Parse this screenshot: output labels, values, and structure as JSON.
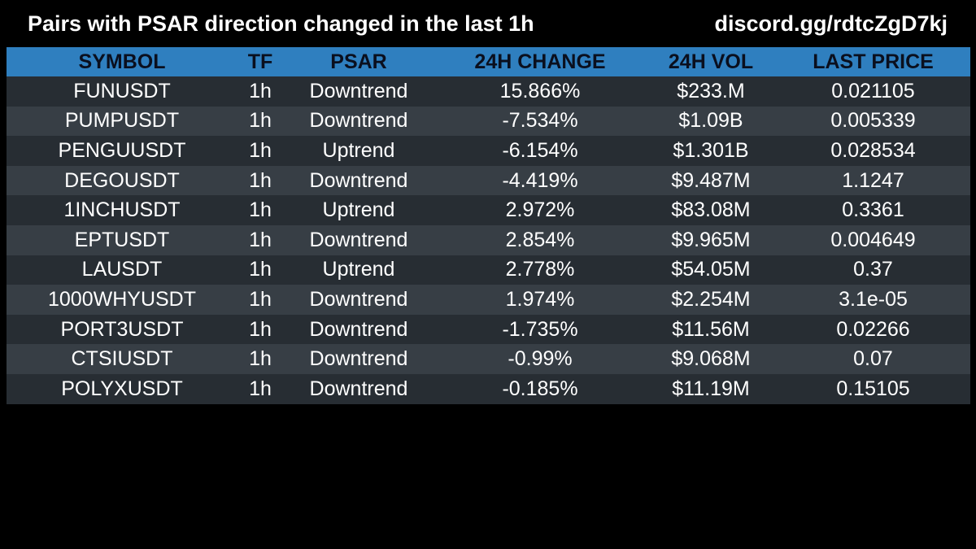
{
  "header": {
    "title": "Pairs with PSAR direction changed in the last 1h",
    "invite": "discord.gg/rdtcZgD7kj"
  },
  "colors": {
    "background": "#000000",
    "header_row": "#2f7fbf",
    "row_odd": "#272d33",
    "row_even": "#373e45",
    "text": "#ffffff"
  },
  "table": {
    "columns": [
      "SYMBOL",
      "TF",
      "PSAR",
      "24H CHANGE",
      "24H VOL",
      "LAST PRICE"
    ],
    "rows": [
      {
        "symbol": "FUNUSDT",
        "tf": "1h",
        "psar": "Downtrend",
        "change": "15.866%",
        "vol": "$233.M",
        "price": "0.021105"
      },
      {
        "symbol": "PUMPUSDT",
        "tf": "1h",
        "psar": "Downtrend",
        "change": "-7.534%",
        "vol": "$1.09B",
        "price": "0.005339"
      },
      {
        "symbol": "PENGUUSDT",
        "tf": "1h",
        "psar": "Uptrend",
        "change": "-6.154%",
        "vol": "$1.301B",
        "price": "0.028534"
      },
      {
        "symbol": "DEGOUSDT",
        "tf": "1h",
        "psar": "Downtrend",
        "change": "-4.419%",
        "vol": "$9.487M",
        "price": "1.1247"
      },
      {
        "symbol": "1INCHUSDT",
        "tf": "1h",
        "psar": "Uptrend",
        "change": "2.972%",
        "vol": "$83.08M",
        "price": "0.3361"
      },
      {
        "symbol": "EPTUSDT",
        "tf": "1h",
        "psar": "Downtrend",
        "change": "2.854%",
        "vol": "$9.965M",
        "price": "0.004649"
      },
      {
        "symbol": "LAUSDT",
        "tf": "1h",
        "psar": "Uptrend",
        "change": "2.778%",
        "vol": "$54.05M",
        "price": "0.37"
      },
      {
        "symbol": "1000WHYUSDT",
        "tf": "1h",
        "psar": "Downtrend",
        "change": "1.974%",
        "vol": "$2.254M",
        "price": "3.1e-05"
      },
      {
        "symbol": "PORT3USDT",
        "tf": "1h",
        "psar": "Downtrend",
        "change": "-1.735%",
        "vol": "$11.56M",
        "price": "0.02266"
      },
      {
        "symbol": "CTSIUSDT",
        "tf": "1h",
        "psar": "Downtrend",
        "change": "-0.99%",
        "vol": "$9.068M",
        "price": "0.07"
      },
      {
        "symbol": "POLYXUSDT",
        "tf": "1h",
        "psar": "Downtrend",
        "change": "-0.185%",
        "vol": "$11.19M",
        "price": "0.15105"
      }
    ]
  }
}
